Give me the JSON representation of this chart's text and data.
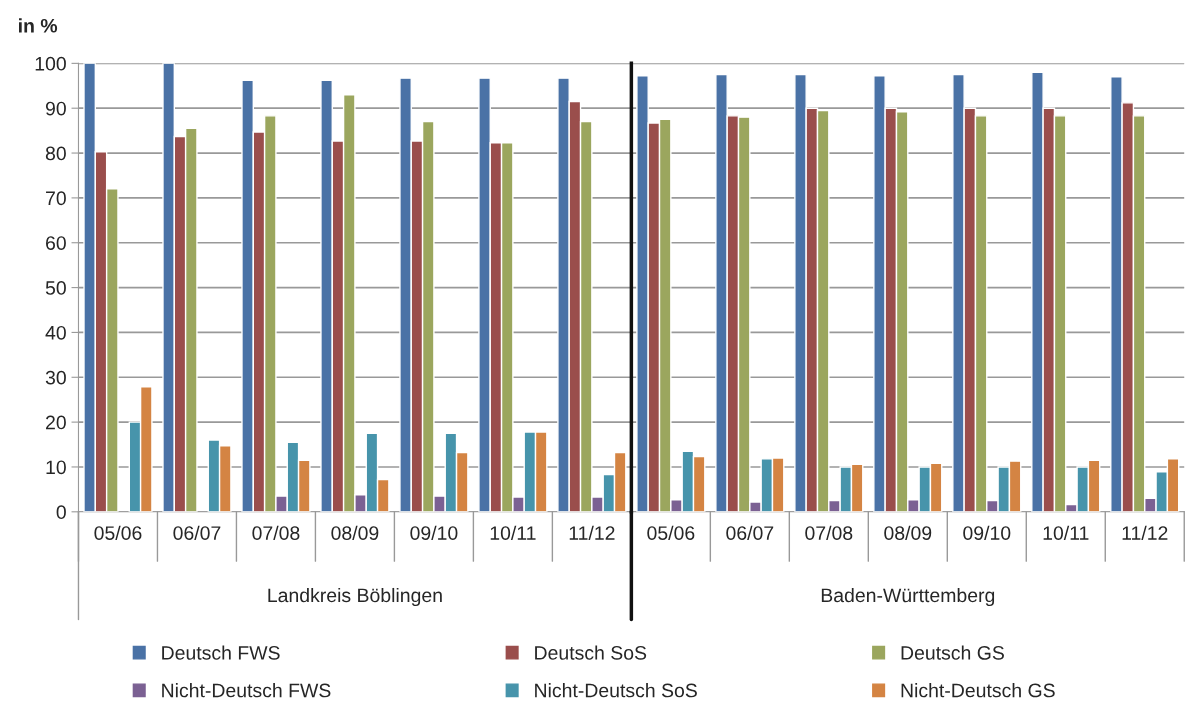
{
  "chart_data": [
    {
      "type": "bar",
      "ylabel": "in %",
      "xlabel": "Landkreis Böblingen",
      "categories": [
        "05/06",
        "06/07",
        "07/08",
        "08/09",
        "09/10",
        "10/11",
        "11/12"
      ],
      "series": [
        {
          "name": "Deutsch FWS",
          "color": "#4a72a6",
          "values": [
            100,
            100,
            96.2,
            96.2,
            96.7,
            96.7,
            96.7
          ]
        },
        {
          "name": "Deutsch SoS",
          "color": "#9a4e4c",
          "values": [
            80.3,
            83.7,
            84.7,
            82.7,
            82.7,
            82.3,
            91.5
          ]
        },
        {
          "name": "Deutsch GS",
          "color": "#9ba65e",
          "values": [
            72,
            85.5,
            88.3,
            93,
            87,
            82.3,
            87
          ]
        },
        {
          "name": "Nicht-Deutsch FWS",
          "color": "#7b6193",
          "values": [
            null,
            null,
            3.5,
            3.8,
            3.5,
            3.3,
            3.3
          ]
        },
        {
          "name": "Nicht-Deutsch SoS",
          "color": "#4794ab",
          "values": [
            20,
            16,
            15.5,
            17.5,
            17.5,
            17.8,
            8.3
          ]
        },
        {
          "name": "Nicht-Deutsch GS",
          "color": "#d48443",
          "values": [
            27.9,
            14.7,
            11.5,
            7.2,
            13.2,
            17.8,
            13.2
          ]
        }
      ],
      "ylim": [
        0,
        100
      ],
      "yticks": [
        0,
        10,
        20,
        30,
        40,
        50,
        60,
        70,
        80,
        90,
        100
      ],
      "grid": "y",
      "legend": "bottom"
    },
    {
      "type": "bar",
      "xlabel": "Baden-Württemberg",
      "categories": [
        "05/06",
        "06/07",
        "07/08",
        "08/09",
        "09/10",
        "10/11",
        "11/12"
      ],
      "series": [
        {
          "color": "#4a72a6",
          "values": [
            97.2,
            97.5,
            97.5,
            97.2,
            97.5,
            98,
            97
          ]
        },
        {
          "color": "#9a4e4c",
          "values": [
            86.7,
            88.3,
            90,
            90,
            90,
            90,
            91.2
          ]
        },
        {
          "color": "#9ba65e",
          "values": [
            87.5,
            88,
            89.5,
            89.2,
            88.3,
            88.3,
            88.3
          ]
        },
        {
          "color": "#7b6193",
          "values": [
            2.7,
            2.2,
            2.5,
            2.7,
            2.5,
            1.6,
            3
          ]
        },
        {
          "color": "#4794ab",
          "values": [
            13.5,
            11.8,
            10,
            10,
            10,
            10,
            8.9
          ]
        },
        {
          "color": "#d48443",
          "values": [
            12.3,
            12,
            10.6,
            10.8,
            11.3,
            11.5,
            11.8
          ]
        }
      ],
      "ylim": [
        0,
        100
      ],
      "yticks": [
        0,
        10,
        20,
        30,
        40,
        50,
        60,
        70,
        80,
        90,
        100
      ],
      "grid": "y",
      "tick_labels": "x"
    }
  ]
}
